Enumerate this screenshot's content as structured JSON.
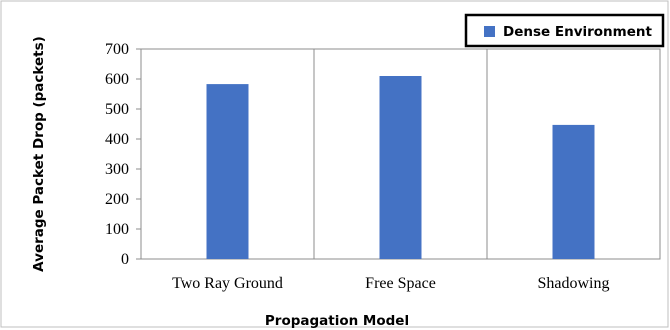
{
  "chart_data": {
    "type": "bar",
    "categories": [
      "Two Ray Ground",
      "Free Space",
      "Shadowing"
    ],
    "series": [
      {
        "name": "Dense Environment",
        "values": [
          583,
          610,
          447
        ]
      }
    ],
    "xlabel": "Propagation Model",
    "ylabel": "Average Packet Drop (packets)",
    "ylim": [
      0,
      700
    ],
    "yticks": [
      "0",
      "100",
      "200",
      "300",
      "400",
      "500",
      "600",
      "700"
    ],
    "grid": "vertical category dividers",
    "legend_position": "top-right",
    "bar_color": "#4472C4"
  }
}
